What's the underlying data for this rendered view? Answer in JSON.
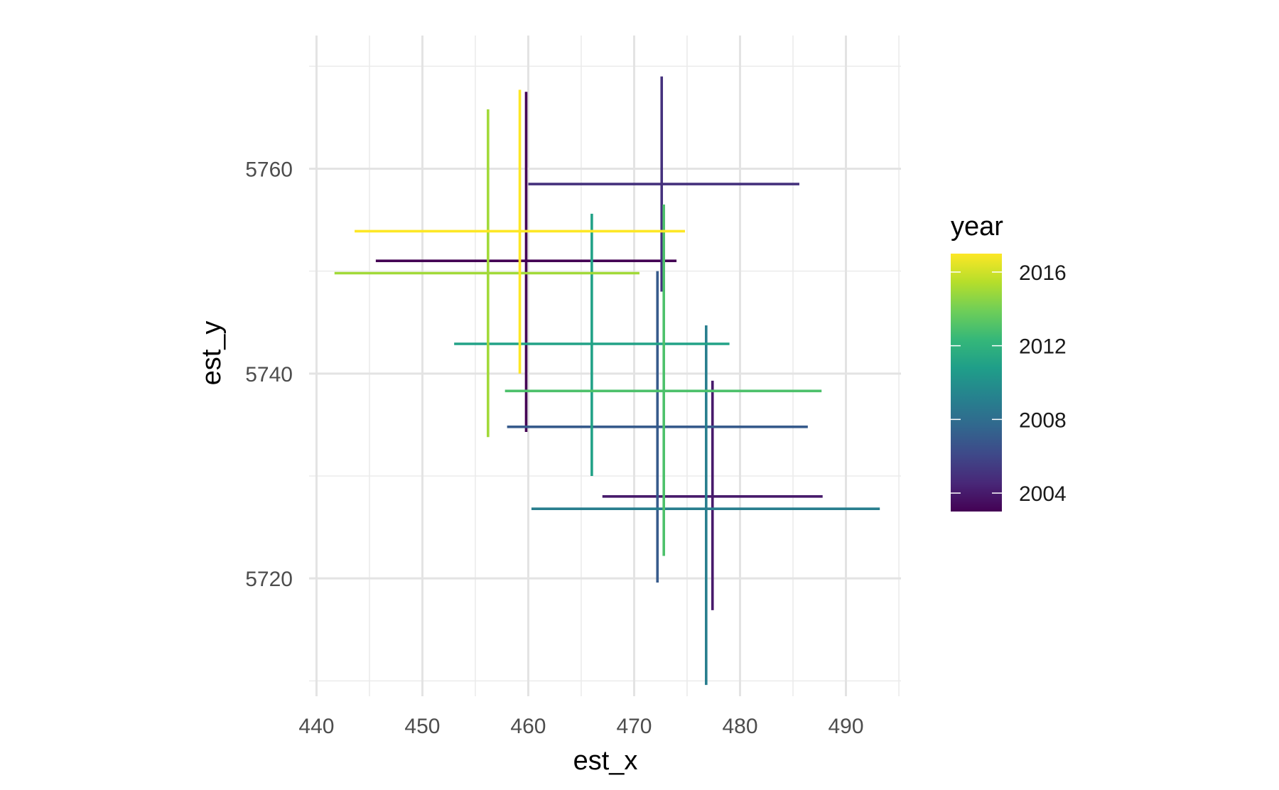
{
  "chart_data": {
    "type": "errorbar-cross",
    "xlabel": "est_x",
    "ylabel": "est_y",
    "xlim": [
      439.3,
      495.2
    ],
    "ylim": [
      5708.5,
      5773.0
    ],
    "x_ticks": [
      440,
      450,
      460,
      470,
      480,
      490
    ],
    "y_ticks": [
      5720,
      5740,
      5760
    ],
    "grid": true,
    "legend": {
      "title": "year",
      "placement": "right",
      "type": "colorbar",
      "range": [
        2003,
        2017
      ],
      "ticks": [
        2004,
        2008,
        2012,
        2016
      ],
      "palette": [
        "#440154",
        "#482878",
        "#3e4989",
        "#31688e",
        "#26828e",
        "#1f9e89",
        "#35b779",
        "#6ece58",
        "#b5de2b",
        "#fde725"
      ]
    },
    "crosses": [
      {
        "year": 2003,
        "x": 459.8,
        "y": 5751.0,
        "xmin": 445.6,
        "xmax": 474.0,
        "ymin": 5734.3,
        "ymax": 5767.5
      },
      {
        "year": 2004,
        "x": 477.4,
        "y": 5728.0,
        "xmin": 467.0,
        "xmax": 487.8,
        "ymin": 5716.9,
        "ymax": 5739.3
      },
      {
        "year": 2005,
        "x": 472.6,
        "y": 5758.5,
        "xmin": 460.0,
        "xmax": 485.6,
        "ymin": 5748.0,
        "ymax": 5769.0
      },
      {
        "year": 2007,
        "x": 472.2,
        "y": 5734.8,
        "xmin": 458.0,
        "xmax": 486.4,
        "ymin": 5719.6,
        "ymax": 5750.0
      },
      {
        "year": 2009,
        "x": 476.8,
        "y": 5726.8,
        "xmin": 460.3,
        "xmax": 493.2,
        "ymin": 5709.6,
        "ymax": 5744.7
      },
      {
        "year": 2011,
        "x": 466.0,
        "y": 5742.9,
        "xmin": 453.0,
        "xmax": 479.0,
        "ymin": 5730.0,
        "ymax": 5755.6
      },
      {
        "year": 2013,
        "x": 472.8,
        "y": 5738.3,
        "xmin": 457.8,
        "xmax": 487.7,
        "ymin": 5722.2,
        "ymax": 5756.5
      },
      {
        "year": 2015,
        "x": 456.2,
        "y": 5749.8,
        "xmin": 441.7,
        "xmax": 470.5,
        "ymin": 5733.8,
        "ymax": 5765.8
      },
      {
        "year": 2017,
        "x": 459.2,
        "y": 5753.9,
        "xmin": 443.6,
        "xmax": 474.8,
        "ymin": 5740.0,
        "ymax": 5767.7
      }
    ]
  }
}
